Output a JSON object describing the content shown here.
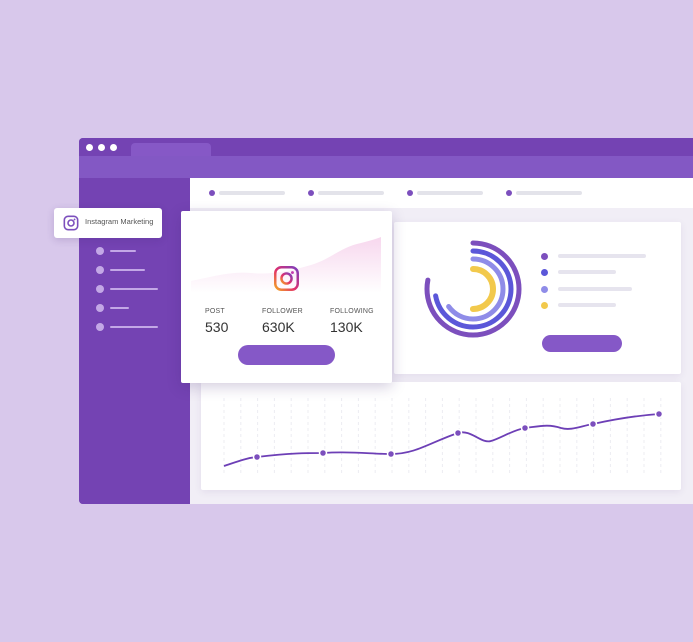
{
  "window": {
    "titlebar_dots": 3,
    "titlebar_color": "#7443b3",
    "sidebar_color": "#7443b3",
    "nav_items": 4,
    "sidebar_items": 5
  },
  "badge": {
    "icon": "instagram-icon",
    "label": "Instagram Marketing"
  },
  "profile": {
    "icon": "instagram-icon",
    "stats": [
      {
        "label": "POST",
        "value": "530"
      },
      {
        "label": "FOLLOWER",
        "value": "630K"
      },
      {
        "label": "FOLLOWING",
        "value": "130K"
      }
    ],
    "button_color": "#8558c7"
  },
  "donut": {
    "ring_colors": [
      "#7c4fbd",
      "#5b57d9",
      "#8f8ce8",
      "#f2c94c"
    ],
    "ring_fractions": [
      0.78,
      0.72,
      0.65,
      0.5
    ],
    "legend_colors": [
      "#7c4fbd",
      "#5b57d9",
      "#8f8ce8",
      "#f2c94c"
    ]
  },
  "trend": {
    "line_color": "#6d3fb6",
    "point_color": "#7c4fbd"
  }
}
